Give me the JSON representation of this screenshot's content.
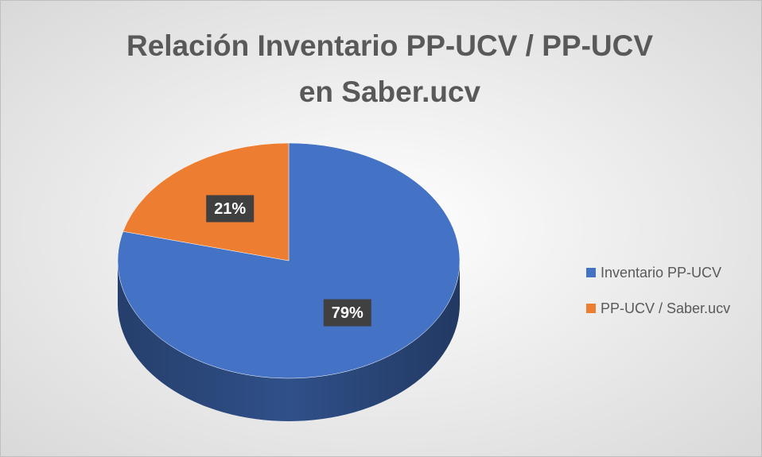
{
  "chart_data": {
    "type": "pie",
    "title": [
      "Relación Inventario PP-UCV / PP-UCV",
      "en Saber.ucv"
    ],
    "categories": [
      "Inventario PP-UCV",
      "PP-UCV / Saber.ucv"
    ],
    "values": [
      79,
      21
    ],
    "value_labels": [
      "79%",
      "21%"
    ],
    "colors": [
      "#4472c4",
      "#ed7d31"
    ],
    "legend": "right"
  }
}
